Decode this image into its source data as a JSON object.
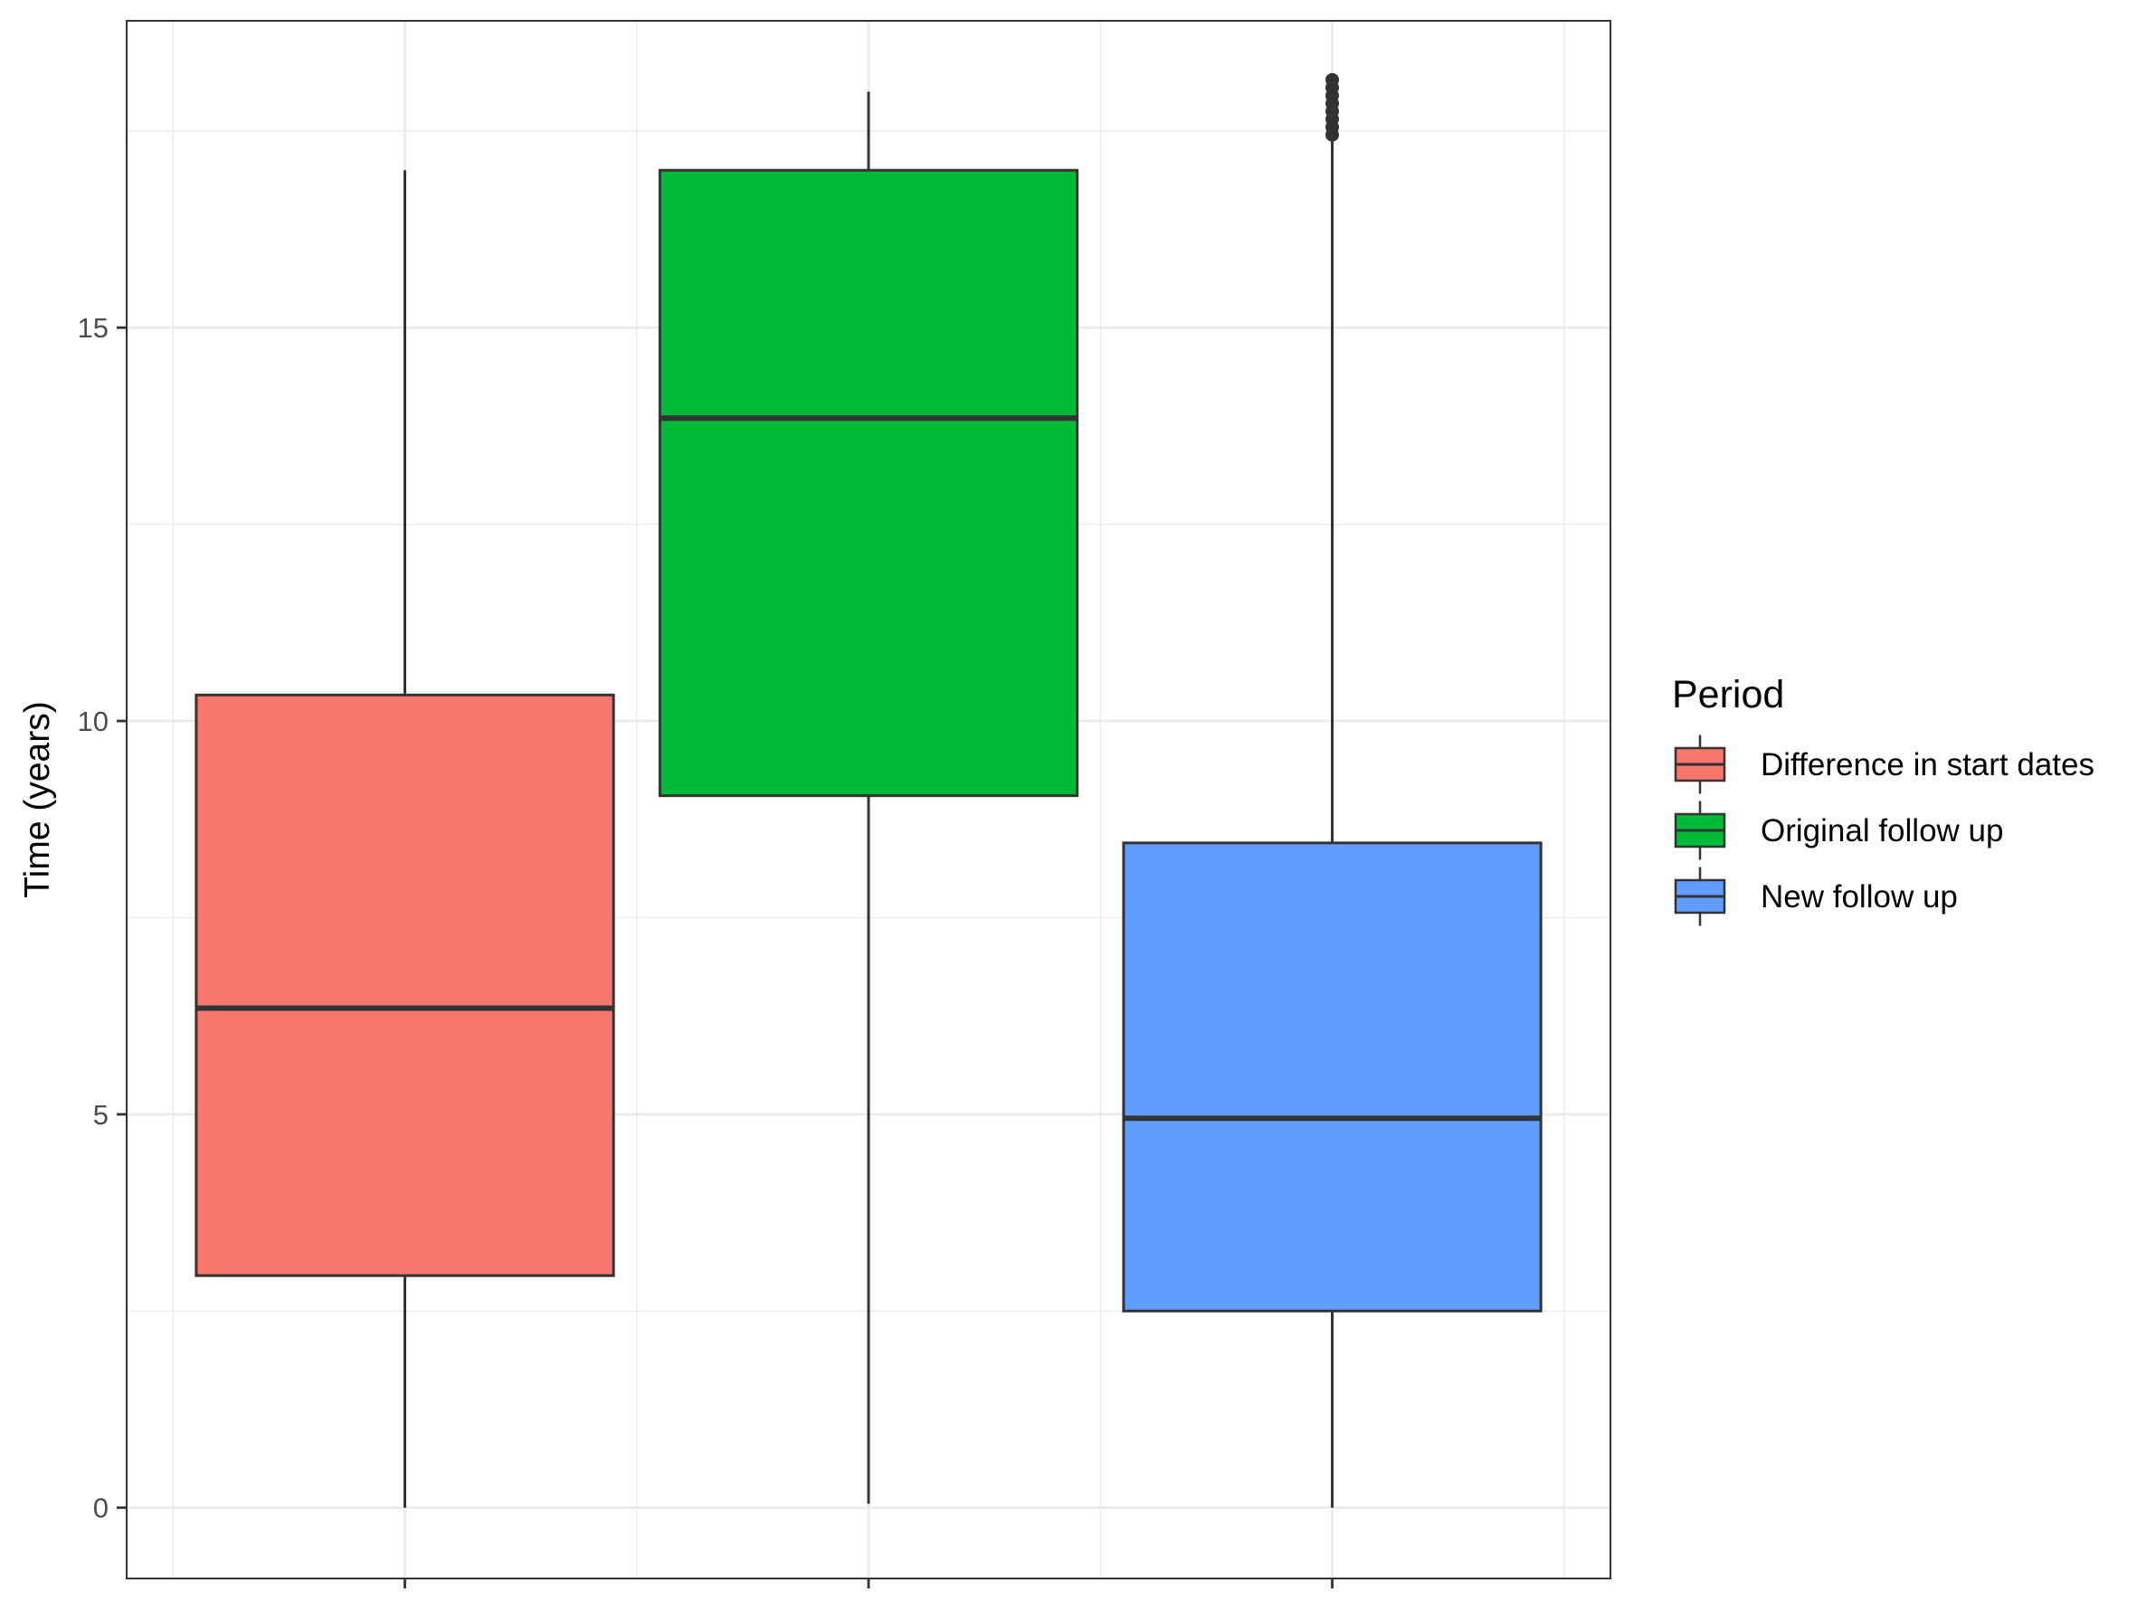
{
  "chart_data": {
    "type": "boxplot",
    "title": "",
    "xlabel": "",
    "ylabel": "Time (years)",
    "ylim": [
      -0.9,
      18.9
    ],
    "y_ticks": [
      0,
      5,
      10,
      15
    ],
    "y_minor_ticks": [
      2.5,
      7.5,
      12.5,
      17.5
    ],
    "grid": true,
    "legend_title": "Period",
    "legend_position": "right",
    "series": [
      {
        "name": "Difference in start dates",
        "color": "#F8766D",
        "min": 0,
        "q1": 2.95,
        "median": 6.35,
        "q3": 10.33,
        "max": 17.0,
        "outliers": []
      },
      {
        "name": "Original follow up",
        "color": "#00BA38",
        "min": 0.05,
        "q1": 9.05,
        "median": 13.85,
        "q3": 17.0,
        "max": 18.0,
        "outliers": []
      },
      {
        "name": "New follow up",
        "color": "#619CFF",
        "min": 0,
        "q1": 2.5,
        "median": 4.95,
        "q3": 8.45,
        "max": 17.4,
        "outliers": [
          17.45,
          17.55,
          17.65,
          17.75,
          17.85,
          17.95,
          18.05,
          18.15
        ]
      }
    ]
  }
}
